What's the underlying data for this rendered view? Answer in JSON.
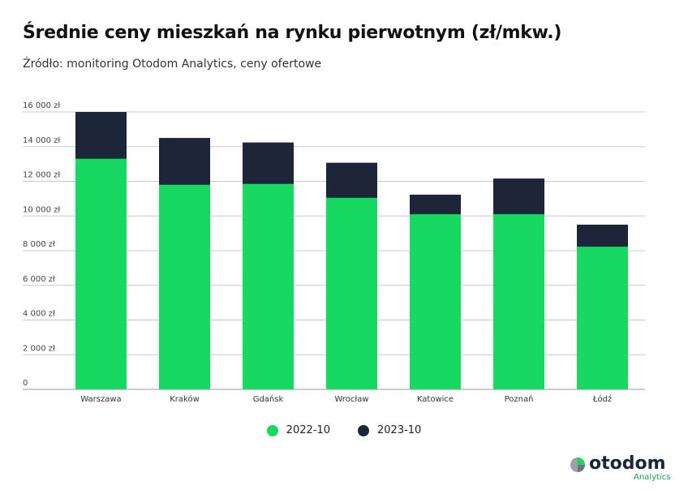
{
  "title": "Średnie ceny mieszkań na rynku pierwotnym (zł/mkw.)",
  "subtitle": "Źródło: monitoring Otodom Analytics, ceny ofertowe",
  "logo": {
    "word": "otodom",
    "sub": "Analytics"
  },
  "colors": {
    "2022-10": "#17d962",
    "2023-10": "#1d2638",
    "grid": "#c8c8c8"
  },
  "chart_data": {
    "type": "bar",
    "layout": "overlapping",
    "title": "Średnie ceny mieszkań na rynku pierwotnym (zł/mkw.)",
    "categories": [
      "Warszawa",
      "Kraków",
      "Gdańsk",
      "Wrocław",
      "Katowice",
      "Poznań",
      "Łódź"
    ],
    "series": [
      {
        "name": "2023-10",
        "values": [
          16000,
          14500,
          14240,
          13070,
          11230,
          12160,
          9500
        ]
      },
      {
        "name": "2022-10",
        "values": [
          13300,
          11800,
          11850,
          11050,
          10100,
          10100,
          8230
        ]
      }
    ],
    "yticks": [
      0,
      2000,
      4000,
      6000,
      8000,
      10000,
      12000,
      14000,
      16000
    ],
    "ytick_labels": [
      "0",
      "2 000 zł",
      "4 000 zł",
      "6 000 zł",
      "8 000 zł",
      "10 000 zł",
      "12 000 zł",
      "14 000 zł",
      "16 000 zł"
    ],
    "ylim": [
      0,
      16000
    ],
    "grid": true,
    "legend": "bottom"
  }
}
